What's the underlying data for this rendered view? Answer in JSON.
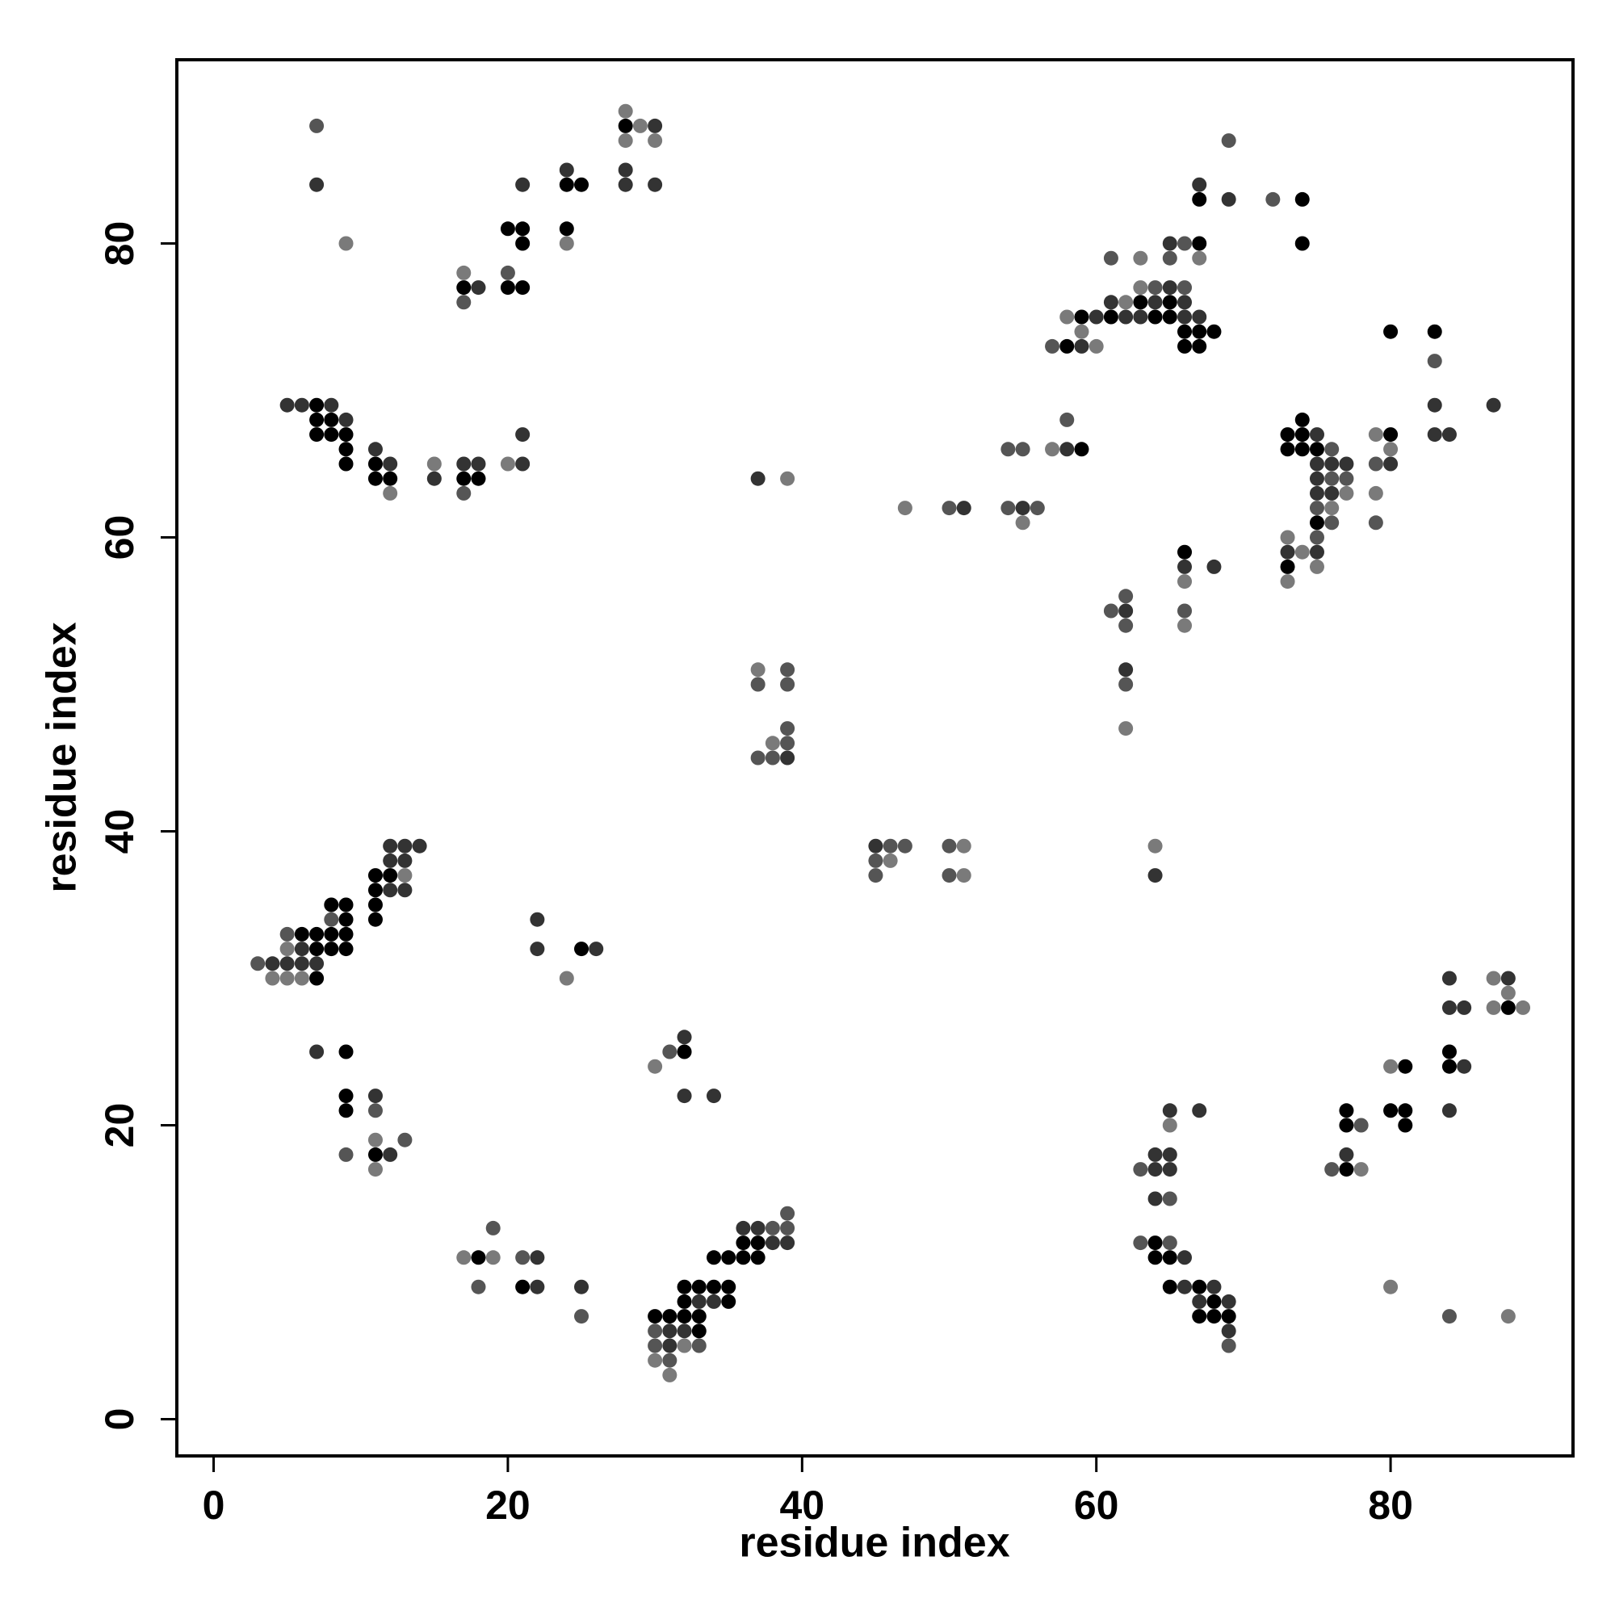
{
  "chart_data": {
    "type": "scatter",
    "x_label": "residue index",
    "y_label": "residue index",
    "xlim": [
      -2.5,
      92.4
    ],
    "ylim": [
      -2.5,
      92.5
    ],
    "xticks": [
      0,
      20,
      40,
      60,
      80
    ],
    "yticks": [
      0,
      20,
      40,
      60,
      80
    ],
    "series": [
      {
        "color": "#000000",
        "x": [
          17,
          20,
          21,
          20,
          21,
          21,
          24,
          25,
          24,
          28,
          7,
          7,
          8,
          7,
          8,
          9,
          9,
          9,
          11,
          11,
          12,
          17,
          18,
          6,
          7,
          7,
          7,
          8,
          8,
          8,
          9,
          9,
          9,
          9,
          11,
          11,
          11,
          11,
          12,
          25,
          9,
          9,
          9,
          11,
          32,
          18,
          21,
          30,
          31,
          32,
          32,
          32,
          33,
          33,
          33,
          34,
          35,
          35,
          34,
          35,
          36,
          36,
          37,
          37,
          59,
          66,
          58,
          59,
          61,
          63,
          64,
          65,
          65,
          66,
          66,
          67,
          67,
          67,
          68,
          67,
          74,
          74,
          73,
          73,
          74,
          74,
          74,
          75,
          75,
          73,
          80,
          80,
          83,
          64,
          64,
          65,
          65,
          67,
          67,
          68,
          68,
          69,
          77,
          77,
          77,
          81,
          80,
          81,
          81,
          84,
          84,
          88
        ],
        "y": [
          77,
          77,
          77,
          81,
          81,
          80,
          84,
          84,
          81,
          88,
          69,
          68,
          68,
          67,
          67,
          67,
          66,
          65,
          65,
          64,
          64,
          64,
          64,
          33,
          33,
          32,
          30,
          35,
          33,
          32,
          35,
          34,
          33,
          32,
          37,
          36,
          35,
          34,
          37,
          32,
          25,
          22,
          21,
          18,
          25,
          11,
          9,
          7,
          7,
          9,
          8,
          7,
          9,
          7,
          6,
          9,
          9,
          8,
          11,
          11,
          11,
          12,
          12,
          11,
          66,
          59,
          73,
          75,
          75,
          76,
          75,
          76,
          75,
          74,
          73,
          80,
          74,
          73,
          74,
          83,
          83,
          80,
          67,
          66,
          68,
          67,
          66,
          66,
          61,
          58,
          67,
          74,
          74,
          12,
          11,
          11,
          9,
          9,
          7,
          8,
          7,
          7,
          17,
          21,
          20,
          24,
          21,
          21,
          20,
          25,
          24,
          28
        ]
      },
      {
        "color": "#333333",
        "x": [
          7,
          18,
          21,
          24,
          30,
          28,
          28,
          30,
          5,
          6,
          8,
          9,
          11,
          12,
          15,
          17,
          18,
          21,
          21,
          4,
          5,
          6,
          6,
          7,
          12,
          12,
          12,
          13,
          13,
          13,
          14,
          22,
          22,
          26,
          7,
          11,
          12,
          32,
          32,
          34,
          22,
          22,
          25,
          31,
          31,
          32,
          33,
          34,
          36,
          37,
          38,
          39,
          37,
          39,
          45,
          51,
          55,
          58,
          64,
          62,
          62,
          66,
          68,
          59,
          60,
          61,
          62,
          63,
          64,
          65,
          65,
          66,
          66,
          67,
          67,
          69,
          75,
          75,
          75,
          75,
          75,
          76,
          76,
          77,
          73,
          80,
          83,
          83,
          84,
          87,
          64,
          64,
          65,
          65,
          64,
          65,
          67,
          66,
          66,
          67,
          68,
          69,
          69,
          77,
          84,
          84,
          85,
          85,
          84,
          88
        ],
        "y": [
          84,
          77,
          84,
          85,
          88,
          85,
          84,
          84,
          69,
          69,
          69,
          68,
          66,
          65,
          64,
          65,
          65,
          65,
          67,
          31,
          31,
          32,
          31,
          31,
          39,
          38,
          36,
          39,
          38,
          36,
          39,
          34,
          32,
          32,
          25,
          22,
          18,
          26,
          22,
          22,
          11,
          9,
          9,
          6,
          5,
          6,
          8,
          8,
          13,
          13,
          12,
          12,
          64,
          45,
          39,
          62,
          62,
          66,
          37,
          55,
          51,
          58,
          58,
          73,
          75,
          76,
          75,
          75,
          76,
          80,
          77,
          76,
          75,
          75,
          84,
          83,
          67,
          65,
          64,
          63,
          59,
          65,
          63,
          65,
          59,
          65,
          69,
          67,
          67,
          69,
          18,
          17,
          18,
          17,
          15,
          21,
          21,
          11,
          9,
          8,
          9,
          8,
          6,
          18,
          30,
          28,
          28,
          24,
          21,
          30
        ]
      },
      {
        "color": "#555555",
        "x": [
          7,
          17,
          20,
          17,
          3,
          5,
          8,
          11,
          9,
          13,
          31,
          19,
          18,
          21,
          25,
          30,
          30,
          31,
          33,
          38,
          39,
          39,
          39,
          37,
          39,
          39,
          39,
          37,
          38,
          46,
          47,
          45,
          45,
          50,
          50,
          50,
          54,
          55,
          54,
          56,
          58,
          61,
          62,
          62,
          62,
          66,
          57,
          61,
          64,
          65,
          66,
          66,
          69,
          72,
          75,
          75,
          76,
          76,
          76,
          77,
          79,
          79,
          83,
          63,
          65,
          63,
          65,
          69,
          76,
          78,
          84
        ],
        "y": [
          88,
          76,
          78,
          63,
          31,
          33,
          34,
          21,
          18,
          19,
          25,
          13,
          9,
          11,
          7,
          6,
          5,
          4,
          5,
          13,
          14,
          13,
          51,
          50,
          50,
          47,
          46,
          45,
          45,
          39,
          39,
          38,
          37,
          39,
          37,
          62,
          66,
          66,
          62,
          62,
          68,
          55,
          56,
          54,
          50,
          55,
          73,
          79,
          77,
          79,
          80,
          77,
          87,
          83,
          62,
          60,
          66,
          64,
          61,
          64,
          65,
          61,
          72,
          17,
          15,
          12,
          12,
          5,
          17,
          20,
          7
        ]
      },
      {
        "color": "#7a7a7a",
        "x": [
          9,
          17,
          24,
          28,
          29,
          28,
          30,
          12,
          15,
          20,
          4,
          5,
          5,
          6,
          13,
          24,
          11,
          11,
          30,
          17,
          19,
          30,
          31,
          32,
          39,
          37,
          38,
          46,
          51,
          51,
          47,
          55,
          57,
          64,
          62,
          66,
          66,
          58,
          59,
          60,
          62,
          63,
          63,
          67,
          75,
          76,
          77,
          73,
          73,
          74,
          79,
          79,
          80,
          65,
          78,
          80,
          80,
          88,
          87,
          88,
          87,
          89
        ],
        "y": [
          80,
          78,
          80,
          89,
          88,
          87,
          87,
          63,
          65,
          65,
          30,
          32,
          30,
          30,
          37,
          30,
          19,
          17,
          24,
          11,
          11,
          4,
          3,
          5,
          64,
          51,
          46,
          38,
          39,
          37,
          62,
          61,
          66,
          39,
          47,
          57,
          54,
          75,
          74,
          73,
          76,
          79,
          77,
          79,
          58,
          62,
          63,
          60,
          57,
          59,
          67,
          63,
          66,
          20,
          17,
          24,
          9,
          7,
          30,
          29,
          28,
          28
        ]
      }
    ]
  }
}
